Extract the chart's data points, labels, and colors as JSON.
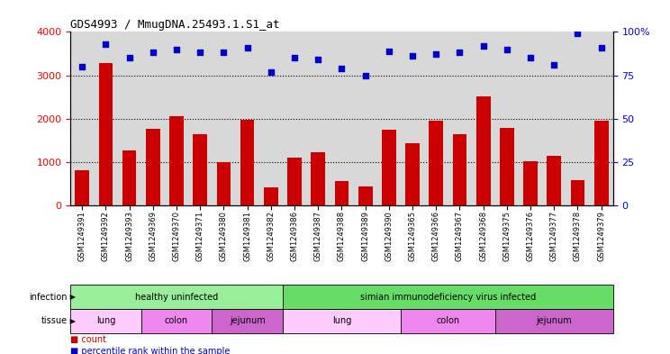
{
  "title": "GDS4993 / MmugDNA.25493.1.S1_at",
  "samples": [
    "GSM1249391",
    "GSM1249392",
    "GSM1249393",
    "GSM1249369",
    "GSM1249370",
    "GSM1249371",
    "GSM1249380",
    "GSM1249381",
    "GSM1249382",
    "GSM1249386",
    "GSM1249387",
    "GSM1249388",
    "GSM1249389",
    "GSM1249390",
    "GSM1249365",
    "GSM1249366",
    "GSM1249367",
    "GSM1249368",
    "GSM1249375",
    "GSM1249376",
    "GSM1249377",
    "GSM1249378",
    "GSM1249379"
  ],
  "counts": [
    800,
    3280,
    1260,
    1760,
    2060,
    1640,
    1000,
    1970,
    420,
    1100,
    1220,
    560,
    430,
    1750,
    1430,
    1960,
    1630,
    2520,
    1790,
    1010,
    1150,
    580,
    1950
  ],
  "percentiles": [
    80,
    93,
    85,
    88,
    90,
    88,
    88,
    91,
    77,
    85,
    84,
    79,
    75,
    89,
    86,
    87,
    88,
    92,
    90,
    85,
    81,
    99,
    91
  ],
  "bar_color": "#cc0000",
  "dot_color": "#0000cc",
  "ylim_left": [
    0,
    4000
  ],
  "ylim_right": [
    0,
    100
  ],
  "yticks_left": [
    0,
    1000,
    2000,
    3000,
    4000
  ],
  "yticks_right": [
    0,
    25,
    50,
    75,
    100
  ],
  "grid_values": [
    1000,
    2000,
    3000
  ],
  "infection_groups": [
    {
      "label": "healthy uninfected",
      "start": 0,
      "end": 9,
      "color": "#99ee99"
    },
    {
      "label": "simian immunodeficiency virus infected",
      "start": 9,
      "end": 23,
      "color": "#66dd66"
    }
  ],
  "tissue_groups": [
    {
      "label": "lung",
      "start": 0,
      "end": 3,
      "color": "#ffccff"
    },
    {
      "label": "colon",
      "start": 3,
      "end": 6,
      "color": "#ee88ee"
    },
    {
      "label": "jejunum",
      "start": 6,
      "end": 9,
      "color": "#cc66cc"
    },
    {
      "label": "lung",
      "start": 9,
      "end": 14,
      "color": "#ffccff"
    },
    {
      "label": "colon",
      "start": 14,
      "end": 18,
      "color": "#ee88ee"
    },
    {
      "label": "jejunum",
      "start": 18,
      "end": 23,
      "color": "#cc66cc"
    }
  ],
  "bg_color": "#d8d8d8",
  "legend_count_color": "#cc0000",
  "legend_pct_color": "#0000cc"
}
